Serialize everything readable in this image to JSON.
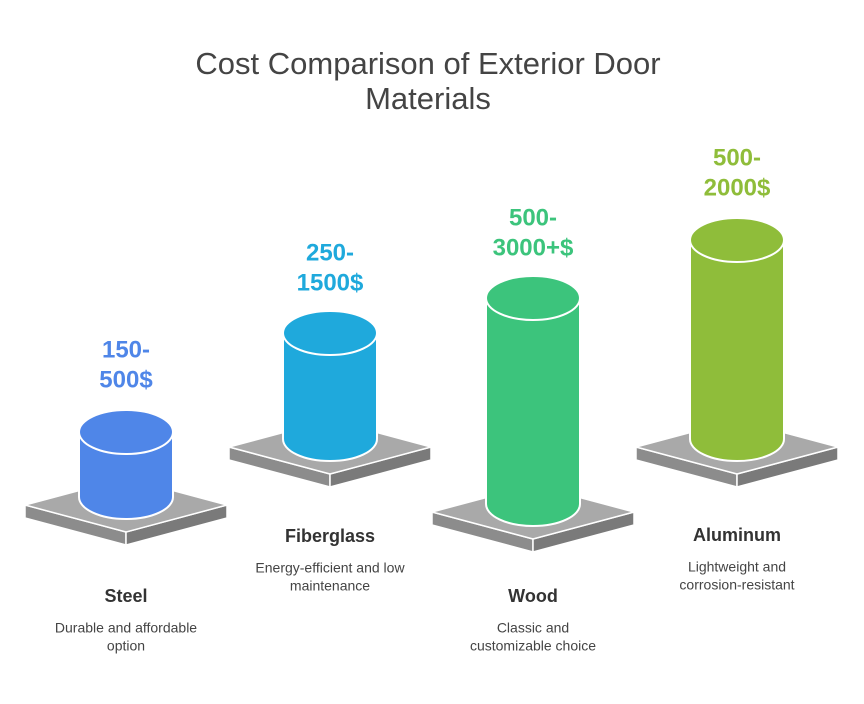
{
  "title": [
    "Cost Comparison of Exterior Door",
    "Materials"
  ],
  "items": [
    {
      "label": "Steel",
      "price": [
        "150-",
        "500$"
      ],
      "description": [
        "Durable and affordable",
        "option"
      ],
      "color": "#4f86e8"
    },
    {
      "label": "Fiberglass",
      "price": [
        "250-",
        "1500$"
      ],
      "description": [
        "Energy-efficient and low",
        "maintenance"
      ],
      "color": "#1fa9dc"
    },
    {
      "label": "Wood",
      "price": [
        "500-",
        "3000+$"
      ],
      "description": [
        "Classic and",
        "customizable choice"
      ],
      "color": "#3cc47c"
    },
    {
      "label": "Aluminum",
      "price": [
        "500-",
        "2000$"
      ],
      "description": [
        "Lightweight and",
        "corrosion-resistant"
      ],
      "color": "#8fbd3a"
    }
  ]
}
